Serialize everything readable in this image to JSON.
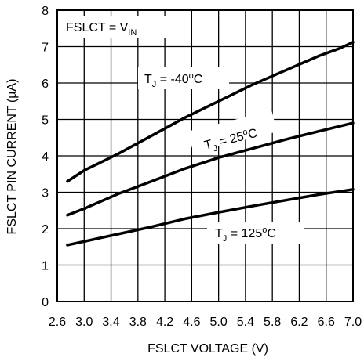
{
  "chart_data": {
    "type": "line",
    "xlabel": "FSLCT VOLTAGE (V)",
    "ylabel": "FSLCT PIN CURRENT (µA)",
    "xlim": [
      2.6,
      7.0
    ],
    "ylim": [
      0,
      8
    ],
    "x_tick_labels": [
      "2.6",
      "3.0",
      "3.4",
      "3.8",
      "4.2",
      "4.6",
      "5.0",
      "5.4",
      "5.8",
      "6.2",
      "6.6",
      "7.0"
    ],
    "x_ticks": [
      2.6,
      3.0,
      3.4,
      3.8,
      4.2,
      4.6,
      5.0,
      5.4,
      5.8,
      6.2,
      6.6,
      7.0
    ],
    "y_ticks": [
      0,
      1,
      2,
      3,
      4,
      5,
      6,
      7,
      8
    ],
    "y_tick_labels": [
      "0",
      "1",
      "2",
      "3",
      "4",
      "5",
      "6",
      "7",
      "8"
    ],
    "grid": true,
    "condition": {
      "base": "FSLCT = V",
      "sub": "IN"
    },
    "series": [
      {
        "name": "T_J = -40ºC",
        "label": {
          "t": "T",
          "sub": "J",
          "eq": " = -40",
          "sup": "o",
          "unit": "C"
        },
        "x": [
          2.75,
          3.0,
          3.5,
          4.0,
          4.5,
          5.0,
          5.5,
          6.0,
          6.5,
          6.8,
          7.0
        ],
        "values": [
          3.3,
          3.6,
          4.05,
          4.55,
          5.05,
          5.5,
          5.95,
          6.35,
          6.75,
          6.95,
          7.12
        ]
      },
      {
        "name": "T_J = 25ºC",
        "label": {
          "t": "T",
          "sub": "J",
          "eq": " = 25",
          "sup": "o",
          "unit": "C"
        },
        "x": [
          2.75,
          3.0,
          3.5,
          4.0,
          4.5,
          5.0,
          5.5,
          6.0,
          6.5,
          7.0
        ],
        "values": [
          2.37,
          2.55,
          2.95,
          3.3,
          3.65,
          3.95,
          4.2,
          4.45,
          4.68,
          4.9
        ]
      },
      {
        "name": "T_J = 125ºC",
        "label": {
          "t": "T",
          "sub": "J",
          "eq": " = 125",
          "sup": "o",
          "unit": "C"
        },
        "x": [
          2.75,
          3.0,
          3.5,
          4.0,
          4.5,
          5.0,
          5.5,
          6.0,
          6.5,
          7.0
        ],
        "values": [
          1.55,
          1.65,
          1.85,
          2.05,
          2.27,
          2.45,
          2.62,
          2.78,
          2.94,
          3.08
        ]
      }
    ]
  }
}
